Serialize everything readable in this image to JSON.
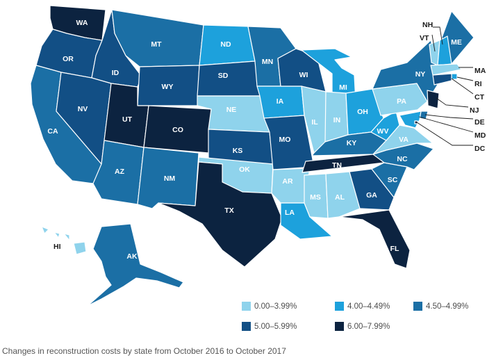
{
  "caption": "Changes in reconstruction costs by state from October 2016 to October 2017",
  "legend": [
    {
      "label": "0.00–3.99%",
      "color": "#8fd3ec"
    },
    {
      "label": "4.00–4.49%",
      "color": "#1da1dc"
    },
    {
      "label": "4.50–4.99%",
      "color": "#1b6fa5"
    },
    {
      "label": "5.00–5.99%",
      "color": "#124f85"
    },
    {
      "label": "6.00–7.99%",
      "color": "#0c2340"
    }
  ],
  "states": [
    {
      "abbr": "WA",
      "class": 4
    },
    {
      "abbr": "OR",
      "class": 3
    },
    {
      "abbr": "CA",
      "class": 2
    },
    {
      "abbr": "ID",
      "class": 3
    },
    {
      "abbr": "NV",
      "class": 3
    },
    {
      "abbr": "MT",
      "class": 2
    },
    {
      "abbr": "WY",
      "class": 3
    },
    {
      "abbr": "UT",
      "class": 4
    },
    {
      "abbr": "AZ",
      "class": 2
    },
    {
      "abbr": "CO",
      "class": 4
    },
    {
      "abbr": "NM",
      "class": 2
    },
    {
      "abbr": "ND",
      "class": 1
    },
    {
      "abbr": "SD",
      "class": 3
    },
    {
      "abbr": "NE",
      "class": 0
    },
    {
      "abbr": "KS",
      "class": 3
    },
    {
      "abbr": "OK",
      "class": 0
    },
    {
      "abbr": "TX",
      "class": 4
    },
    {
      "abbr": "MN",
      "class": 2
    },
    {
      "abbr": "IA",
      "class": 1
    },
    {
      "abbr": "MO",
      "class": 3
    },
    {
      "abbr": "AR",
      "class": 0
    },
    {
      "abbr": "LA",
      "class": 1
    },
    {
      "abbr": "WI",
      "class": 3
    },
    {
      "abbr": "IL",
      "class": 0
    },
    {
      "abbr": "MI",
      "class": 1
    },
    {
      "abbr": "IN",
      "class": 0
    },
    {
      "abbr": "OH",
      "class": 1
    },
    {
      "abbr": "KY",
      "class": 2
    },
    {
      "abbr": "TN",
      "class": 4
    },
    {
      "abbr": "MS",
      "class": 0
    },
    {
      "abbr": "AL",
      "class": 0
    },
    {
      "abbr": "GA",
      "class": 3
    },
    {
      "abbr": "FL",
      "class": 4
    },
    {
      "abbr": "SC",
      "class": 2
    },
    {
      "abbr": "NC",
      "class": 2
    },
    {
      "abbr": "VA",
      "class": 0
    },
    {
      "abbr": "WV",
      "class": 1
    },
    {
      "abbr": "PA",
      "class": 0
    },
    {
      "abbr": "NY",
      "class": 2
    },
    {
      "abbr": "ME",
      "class": 2
    },
    {
      "abbr": "VT",
      "class": 0
    },
    {
      "abbr": "NH",
      "class": 1
    },
    {
      "abbr": "MA",
      "class": 0
    },
    {
      "abbr": "RI",
      "class": 1
    },
    {
      "abbr": "CT",
      "class": 3
    },
    {
      "abbr": "NJ",
      "class": 4
    },
    {
      "abbr": "DE",
      "class": 2
    },
    {
      "abbr": "MD",
      "class": 1
    },
    {
      "abbr": "DC",
      "class": 4
    },
    {
      "abbr": "AK",
      "class": 2
    },
    {
      "abbr": "HI",
      "class": 0
    }
  ]
}
